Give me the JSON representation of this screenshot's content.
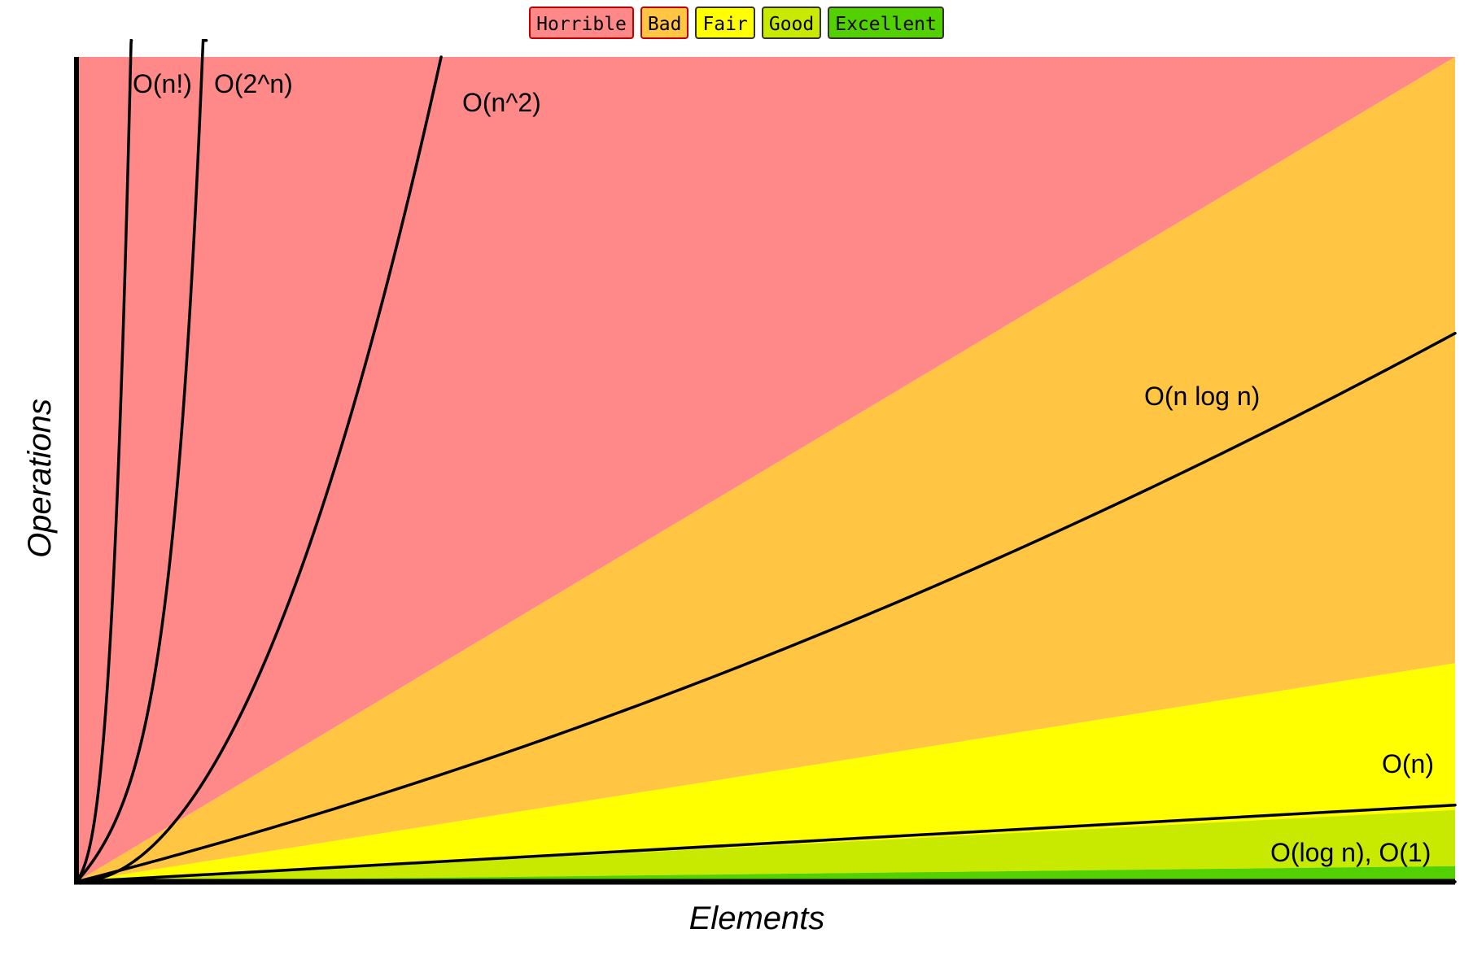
{
  "legend": [
    {
      "label": "Horrible",
      "color": "#ff8989",
      "border": "#c00000"
    },
    {
      "label": "Bad",
      "color": "#ffc543",
      "border": "#c00000"
    },
    {
      "label": "Fair",
      "color": "#ffff00",
      "border": "#333333"
    },
    {
      "label": "Good",
      "color": "#c8ea00",
      "border": "#333333"
    },
    {
      "label": "Excellent",
      "color": "#53d000",
      "border": "#333333"
    }
  ],
  "chart_data": {
    "type": "line",
    "title": "",
    "xlabel": "Elements",
    "ylabel": "Operations",
    "xlim": [
      0,
      1
    ],
    "ylim": [
      0,
      1
    ],
    "grid": false,
    "legend_placement": "top-center",
    "regions": [
      {
        "name": "Horrible",
        "color": "#ff8989",
        "upper_at_x1": 1.0,
        "lower_at_x1": 1.0
      },
      {
        "name": "Bad",
        "color": "#ffc543",
        "upper_at_x1": 1.0,
        "lower_at_x1": 0.265
      },
      {
        "name": "Fair",
        "color": "#ffff00",
        "upper_at_x1": 0.265,
        "lower_at_x1": 0.087
      },
      {
        "name": "Good",
        "color": "#c8ea00",
        "upper_at_x1": 0.087,
        "lower_at_x1": 0.019
      },
      {
        "name": "Excellent",
        "color": "#53d000",
        "upper_at_x1": 0.019,
        "lower_at_x1": 0.0
      }
    ],
    "series": [
      {
        "name": "O(n!)",
        "label": "O(n!)"
      },
      {
        "name": "O(2^n)",
        "label": "O(2^n)"
      },
      {
        "name": "O(n^2)",
        "label": "O(n^2)"
      },
      {
        "name": "O(n log n)",
        "label": "O(n log n)"
      },
      {
        "name": "O(n)",
        "label": "O(n)"
      },
      {
        "name": "O(log n), O(1)",
        "label": "O(log n), O(1)"
      }
    ]
  }
}
